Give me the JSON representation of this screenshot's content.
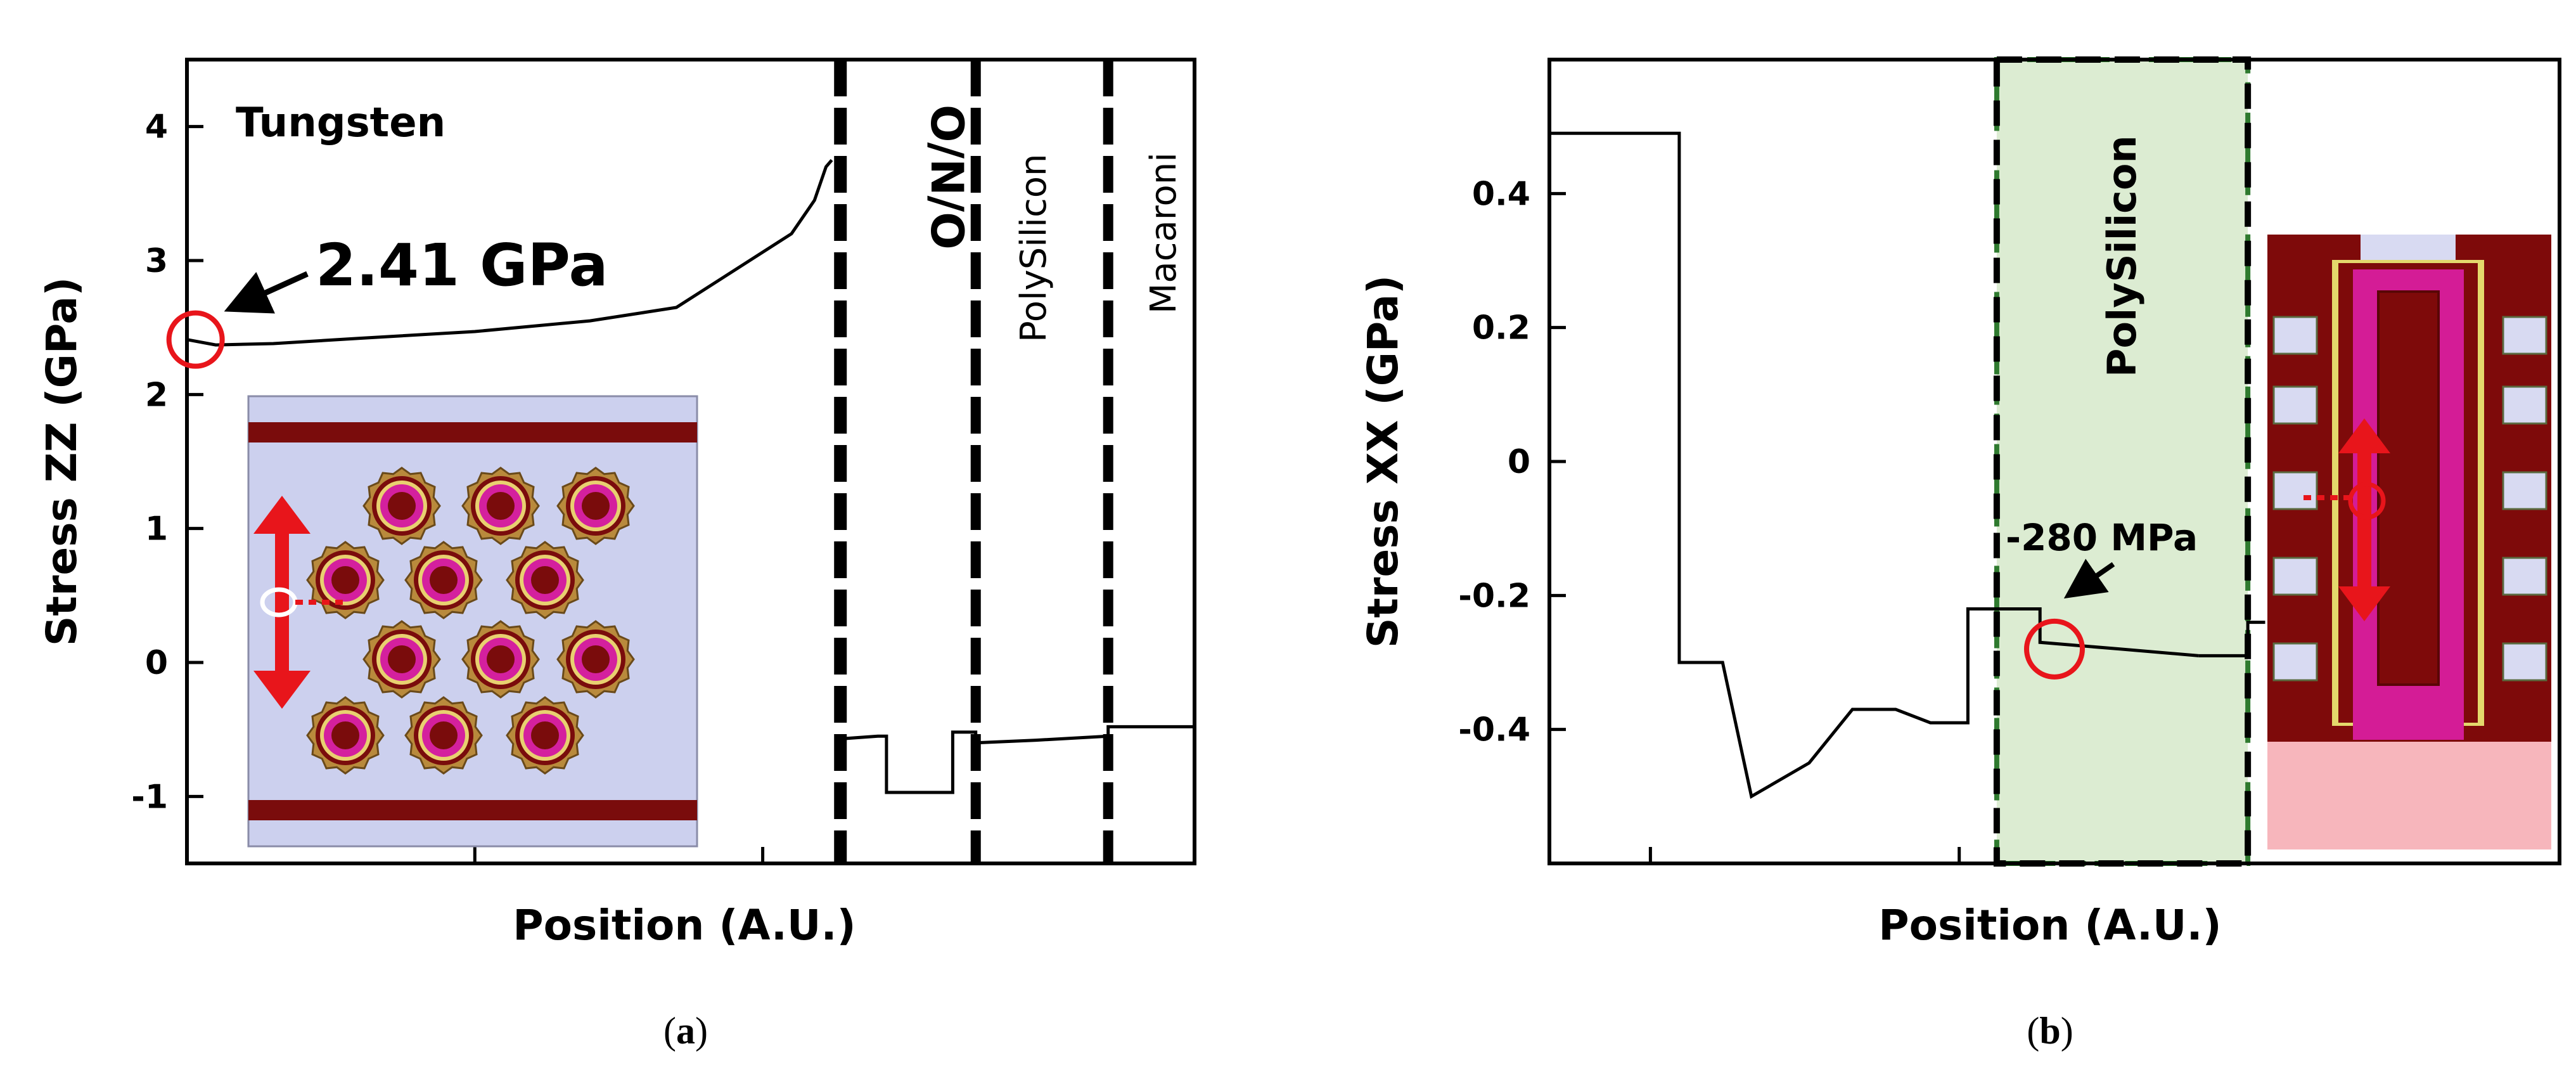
{
  "panels": [
    {
      "panel_label_open": "(",
      "panel_label_letter": "a",
      "panel_label_close": ")",
      "region_labels": [
        "Tungsten",
        "O/N/O",
        "PolySilicon",
        "Macaroni"
      ],
      "annotation": "2.41 GPa"
    },
    {
      "panel_label_open": "(",
      "panel_label_letter": "b",
      "panel_label_close": ")",
      "region_labels": [
        "PolySilicon"
      ],
      "annotation": "-280 MPa"
    }
  ],
  "chart_data": [
    {
      "type": "line",
      "xlabel": "Position (A.U.)",
      "ylabel": "Stress ZZ (GPa)",
      "ylim": [
        -1.5,
        4.5
      ],
      "xlim": [
        0,
        3.5
      ],
      "yticks": [
        -1,
        0,
        1,
        2,
        3,
        4
      ],
      "ytick_labels": [
        "-1",
        "0",
        "1",
        "2",
        "3",
        "4"
      ],
      "xticks": [
        1,
        2
      ],
      "grid": false,
      "series": [
        {
          "x": [
            0,
            0.1,
            0.3,
            0.6,
            1.0,
            1.4,
            1.7,
            2.1,
            2.18,
            2.22,
            2.24
          ],
          "y": [
            2.41,
            2.37,
            2.38,
            2.42,
            2.47,
            2.55,
            2.65,
            3.2,
            3.45,
            3.7,
            3.75
          ]
        },
        {
          "x": [
            2.27,
            2.27,
            2.4,
            2.43,
            2.43,
            2.55,
            2.63,
            2.66,
            2.66,
            2.74,
            2.74,
            2.95,
            3.2,
            3.2,
            3.5
          ],
          "y": [
            -0.58,
            -0.57,
            -0.55,
            -0.55,
            -0.97,
            -0.97,
            -0.97,
            -0.97,
            -0.52,
            -0.52,
            -0.6,
            -0.58,
            -0.55,
            -0.48,
            -0.48
          ]
        }
      ],
      "boundaries_x": [
        2.27,
        2.74,
        3.2
      ],
      "annotation_point": {
        "x": 0.03,
        "y": 2.41
      }
    },
    {
      "type": "line",
      "xlabel": "Position (A.U.)",
      "ylabel": "Stress XX (GPa)",
      "ylim": [
        -0.6,
        0.6
      ],
      "xlim": [
        0,
        3.5
      ],
      "yticks": [
        -0.4,
        -0.2,
        0,
        0.2,
        0.4
      ],
      "ytick_labels": [
        "-0.4",
        "-0.2",
        "0",
        "0.2",
        "0.4"
      ],
      "xticks": [
        0.35,
        1.42
      ],
      "grid": false,
      "series": [
        {
          "x": [
            0,
            0.45,
            0.45,
            0.6,
            0.6,
            0.7,
            0.9,
            0.9,
            1.05,
            1.2,
            1.2,
            1.32,
            1.45,
            1.45,
            1.55,
            1.7,
            1.7,
            1.98,
            1.98,
            2.25
          ],
          "y": [
            0.49,
            0.49,
            -0.3,
            -0.3,
            -0.3,
            -0.5,
            -0.45,
            -0.45,
            -0.37,
            -0.37,
            -0.37,
            -0.39,
            -0.39,
            -0.22,
            -0.22,
            -0.22,
            -0.27,
            -0.28,
            -0.28,
            -0.29
          ]
        },
        {
          "x": [
            2.25,
            2.42,
            2.42,
            2.48
          ],
          "y": [
            -0.29,
            -0.29,
            -0.24,
            -0.24
          ]
        }
      ],
      "highlight_x": [
        1.55,
        2.42
      ],
      "annotation_point": {
        "x": 1.75,
        "y": -0.28
      }
    }
  ],
  "colors": {
    "line": "#000000",
    "marker_red": "#e8151b",
    "inset_bg": "#ccd0ee",
    "inset_bar": "#7a0c0c",
    "pillar_outer": "#b98a3c",
    "pillar_ring": "#7a0c0c",
    "pillar_core": "#d4209e",
    "highlight_fill": "#dcecd2",
    "highlight_line": "#2f7a2f",
    "xsec_maroon": "#7e0a0a",
    "xsec_magenta": "#d41c96",
    "xsec_lavender": "#d8daf2",
    "xsec_pink": "#f7b6bc",
    "xsec_yellow": "#e4d86c"
  }
}
